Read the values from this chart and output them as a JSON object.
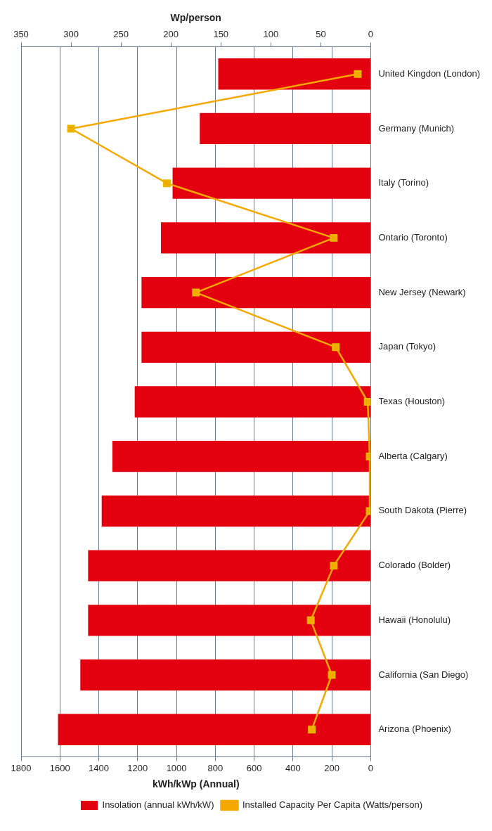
{
  "chart_data": {
    "type": "bar",
    "orientation": "horizontal",
    "categories": [
      "United Kingdon (London)",
      "Germany (Munich)",
      "Italy (Torino)",
      "Ontario (Toronto)",
      "New Jersey (Newark)",
      "Japan (Tokyo)",
      "Texas (Houston)",
      "Alberta (Calgary)",
      "South Dakota (Pierre)",
      "Colorado (Bolder)",
      "Hawaii (Honolulu)",
      "California (San Diego)",
      "Arizona (Phoenix)"
    ],
    "series": [
      {
        "name": "Insolation (annual kWh/kW)",
        "color": "#e3000f",
        "values": [
          785,
          880,
          1020,
          1080,
          1180,
          1180,
          1215,
          1330,
          1385,
          1455,
          1455,
          1495,
          1610
        ]
      },
      {
        "name": "Installed Capacity Per Capita (Watts/person)",
        "type": "line",
        "axis": "x2",
        "color": "#f5a800",
        "values": [
          13,
          300,
          204,
          37,
          175,
          35,
          3,
          1,
          1,
          37,
          60,
          39,
          59
        ]
      }
    ],
    "xlabel": "kWh/kWp (Annual)",
    "x2label": "Wp/person",
    "xlim": [
      1800,
      0
    ],
    "xticks": [
      0,
      200,
      400,
      600,
      800,
      1000,
      1200,
      1400,
      1600,
      1800
    ],
    "x2lim": [
      350,
      0
    ],
    "x2ticks": [
      0,
      50,
      100,
      150,
      200,
      250,
      300,
      350
    ],
    "grid": "x",
    "legend": "bottom",
    "marker": "square",
    "line_style": "solid"
  }
}
